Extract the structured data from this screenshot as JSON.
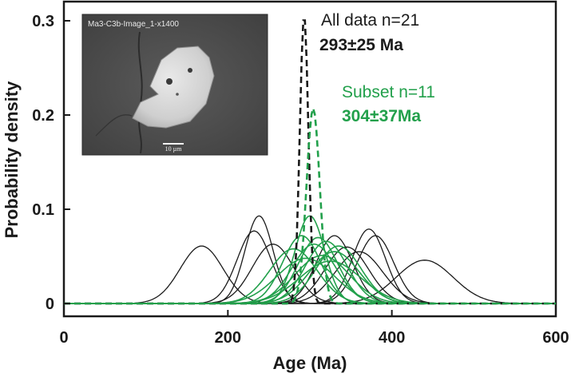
{
  "chart_data": {
    "type": "line",
    "xlabel": "Age (Ma)",
    "ylabel": "Probability density",
    "xlim": [
      0,
      600
    ],
    "ylim": [
      0,
      0.32
    ],
    "x_ticks": [
      "0",
      "200",
      "400",
      "600"
    ],
    "y_ticks": [
      "0",
      "0.1",
      "0.2",
      "0.3"
    ],
    "x_tick_values": [
      0,
      200,
      400,
      600
    ],
    "y_tick_values": [
      0,
      0.1,
      0.2,
      0.3
    ],
    "grid": false,
    "colors": {
      "all": "#1a1a1a",
      "subset": "#22a04b"
    },
    "individual_all": [
      {
        "mu": 168,
        "peak": 0.061
      },
      {
        "mu": 238,
        "peak": 0.093
      },
      {
        "mu": 232,
        "peak": 0.077
      },
      {
        "mu": 255,
        "peak": 0.063
      },
      {
        "mu": 330,
        "peak": 0.072
      },
      {
        "mu": 372,
        "peak": 0.079
      },
      {
        "mu": 380,
        "peak": 0.072
      },
      {
        "mu": 440,
        "peak": 0.046
      },
      {
        "mu": 360,
        "peak": 0.055
      },
      {
        "mu": 345,
        "peak": 0.06
      }
    ],
    "individual_subset": [
      {
        "mu": 300,
        "peak": 0.093
      },
      {
        "mu": 290,
        "peak": 0.072
      },
      {
        "mu": 310,
        "peak": 0.07
      },
      {
        "mu": 320,
        "peak": 0.066
      },
      {
        "mu": 305,
        "peak": 0.063
      },
      {
        "mu": 335,
        "peak": 0.061
      },
      {
        "mu": 280,
        "peak": 0.058
      },
      {
        "mu": 330,
        "peak": 0.055
      },
      {
        "mu": 315,
        "peak": 0.051
      },
      {
        "mu": 295,
        "peak": 0.048
      },
      {
        "mu": 325,
        "peak": 0.045
      }
    ],
    "summary_all": {
      "mu": 293,
      "peak": 0.306
    },
    "summary_subset": {
      "mu": 304,
      "peak": 0.207
    },
    "annotations": {
      "all_label": "All data n=21",
      "all_value": "293±25 Ma",
      "subset_label": "Subset n=11",
      "subset_value": "304±37Ma"
    },
    "inset": {
      "title": "Ma3-C3b-Image_1-x1400",
      "scale_text": "10 µm"
    }
  }
}
